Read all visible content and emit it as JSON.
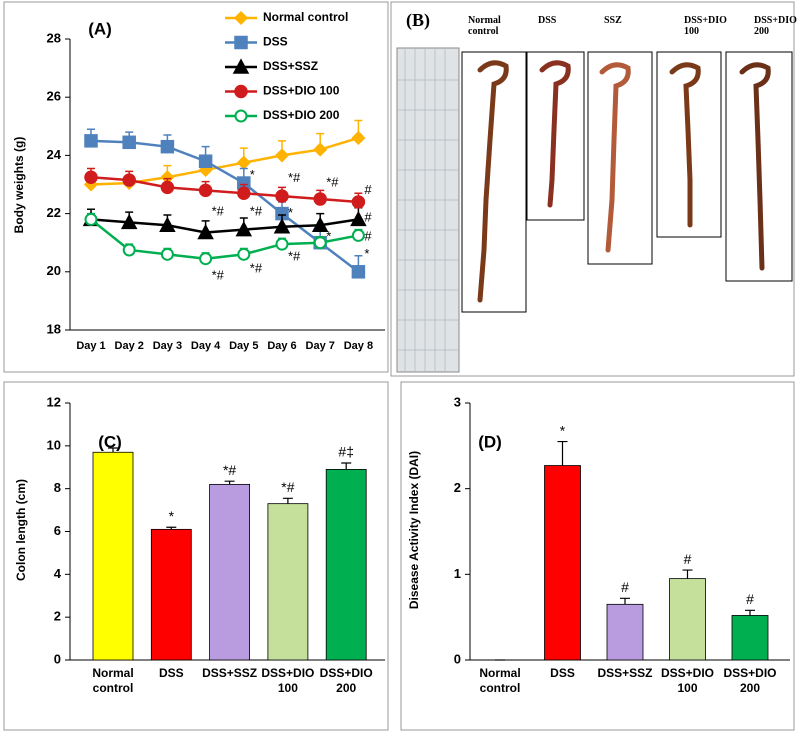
{
  "chart_data": [
    {
      "type": "line",
      "panel_label": "(A)",
      "ylabel": "Body weights (g)",
      "categories": [
        "Day 1",
        "Day 2",
        "Day 3",
        "Day 4",
        "Day 5",
        "Day 6",
        "Day 7",
        "Day 8"
      ],
      "ylim": [
        18,
        28
      ],
      "yticks": [
        18,
        20,
        22,
        24,
        26,
        28
      ],
      "legend": "upper right",
      "series": [
        {
          "name": "Normal control",
          "color": "#ffb300",
          "marker": "diamond",
          "values": [
            23.0,
            23.05,
            23.25,
            23.5,
            23.75,
            24.0,
            24.2,
            24.6
          ],
          "errors": [
            0.1,
            0.1,
            0.4,
            0.4,
            0.5,
            0.5,
            0.55,
            0.6
          ]
        },
        {
          "name": "DSS",
          "color": "#4f81bd",
          "marker": "square",
          "values": [
            24.5,
            24.45,
            24.3,
            23.8,
            23.05,
            22.0,
            21.0,
            20.0
          ],
          "errors": [
            0.4,
            0.35,
            0.4,
            0.5,
            0.5,
            0.4,
            0.4,
            0.55
          ]
        },
        {
          "name": "DSS+SSZ",
          "color": "#000000",
          "marker": "triangle",
          "values": [
            21.8,
            21.7,
            21.6,
            21.35,
            21.45,
            21.55,
            21.6,
            21.8
          ],
          "errors": [
            0.35,
            0.35,
            0.35,
            0.4,
            0.4,
            0.4,
            0.4,
            0.4
          ]
        },
        {
          "name": "DSS+DIO 100",
          "color": "#d01c1c",
          "marker": "circle",
          "values": [
            23.25,
            23.15,
            22.9,
            22.8,
            22.7,
            22.6,
            22.5,
            22.4
          ],
          "errors": [
            0.3,
            0.3,
            0.3,
            0.3,
            0.3,
            0.3,
            0.3,
            0.3
          ]
        },
        {
          "name": "DSS+DIO 200",
          "color": "#00b050",
          "marker": "circle-open",
          "values": [
            21.8,
            20.75,
            20.6,
            20.45,
            20.6,
            20.95,
            21.0,
            21.25
          ],
          "errors": [
            0.2,
            0.2,
            0.2,
            0.2,
            0.2,
            0.2,
            0.2,
            0.2
          ]
        }
      ],
      "annotations": [
        {
          "text": "*",
          "x": "Day 5",
          "y": 23.3
        },
        {
          "text": "*#",
          "x": "Day 6",
          "y": 23.2
        },
        {
          "text": "*",
          "x": "Day 6",
          "y": 22.0
        },
        {
          "text": "*#",
          "x": "Day 7",
          "y": 23.05
        },
        {
          "text": "#",
          "x": "Day 8",
          "y": 22.8
        },
        {
          "text": "*#",
          "x": "Day 4",
          "y": 22.05
        },
        {
          "text": "*#",
          "x": "Day 5",
          "y": 22.05
        },
        {
          "text": "#",
          "x": "Day 8",
          "y": 21.85
        },
        {
          "text": "*",
          "x": "Day 7",
          "y": 21.2
        },
        {
          "text": "#",
          "x": "Day 8",
          "y": 21.2
        },
        {
          "text": "*#",
          "x": "Day 4",
          "y": 19.85
        },
        {
          "text": "*#",
          "x": "Day 5",
          "y": 20.1
        },
        {
          "text": "*#",
          "x": "Day 6",
          "y": 20.5
        },
        {
          "text": "*",
          "x": "Day 8",
          "y": 20.6
        }
      ]
    },
    {
      "type": "image",
      "panel_label": "(B)",
      "labels": [
        "Normal control",
        "DSS",
        "SSZ",
        "DSS+DIO 100",
        "DSS+DIO 200"
      ]
    },
    {
      "type": "bar",
      "panel_label": "(C)",
      "ylabel": "Colon length (cm)",
      "categories": [
        "Normal control",
        "DSS",
        "DSS+SSZ",
        "DSS+DIO 100",
        "DSS+DIO 200"
      ],
      "values": [
        9.7,
        6.1,
        8.2,
        7.3,
        8.9
      ],
      "errors": [
        0.2,
        0.1,
        0.15,
        0.25,
        0.3
      ],
      "colors": [
        "#ffff00",
        "#ff0000",
        "#b99ce0",
        "#c4e09a",
        "#00b050"
      ],
      "annotations": [
        null,
        "*",
        "*#",
        "*#",
        "#‡"
      ],
      "ylim": [
        0,
        12
      ],
      "yticks": [
        0,
        2,
        4,
        6,
        8,
        10,
        12
      ]
    },
    {
      "type": "bar",
      "panel_label": "(D)",
      "ylabel": "Disease Activity Index (DAI)",
      "categories": [
        "Normal control",
        "DSS",
        "DSS+SSZ",
        "DSS+DIO 100",
        "DSS+DIO 200"
      ],
      "values": [
        0,
        2.27,
        0.65,
        0.95,
        0.52
      ],
      "errors": [
        0,
        0.28,
        0.07,
        0.1,
        0.06
      ],
      "colors": [
        "#ffff00",
        "#ff0000",
        "#b99ce0",
        "#c4e09a",
        "#00b050"
      ],
      "annotations": [
        null,
        "*",
        "#",
        "#",
        "#"
      ],
      "ylim": [
        0,
        3
      ],
      "yticks": [
        0,
        1,
        2,
        3
      ]
    }
  ]
}
